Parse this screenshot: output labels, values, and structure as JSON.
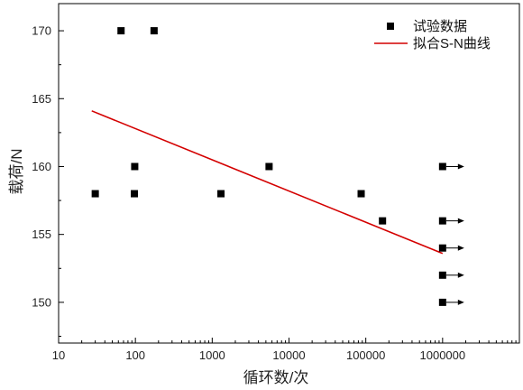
{
  "chart_data": {
    "type": "scatter",
    "title": "",
    "xlabel": "循环数/次",
    "ylabel": "载荷/N",
    "x_scale": "log",
    "xlim": [
      10,
      10000000
    ],
    "ylim": [
      147,
      172
    ],
    "x_ticks": [
      10,
      100,
      1000,
      10000,
      100000,
      1000000
    ],
    "x_tick_labels": [
      "10",
      "100",
      "1000",
      "10000",
      "100000",
      "1000000"
    ],
    "y_ticks": [
      150,
      155,
      160,
      165,
      170
    ],
    "y_tick_labels": [
      "150",
      "155",
      "160",
      "165",
      "170"
    ],
    "grid": false,
    "legend_position": "top-right",
    "series": [
      {
        "name": "试验数据",
        "marker": "square",
        "color": "#000000",
        "points": [
          {
            "x": 30,
            "y": 158
          },
          {
            "x": 65,
            "y": 170
          },
          {
            "x": 98,
            "y": 160
          },
          {
            "x": 97,
            "y": 158
          },
          {
            "x": 175,
            "y": 170
          },
          {
            "x": 1300,
            "y": 158
          },
          {
            "x": 5500,
            "y": 160
          },
          {
            "x": 87000,
            "y": 158
          },
          {
            "x": 165000,
            "y": 156
          },
          {
            "x": 1000000,
            "y": 160,
            "runout": true
          },
          {
            "x": 1000000,
            "y": 156,
            "runout": true
          },
          {
            "x": 1000000,
            "y": 154,
            "runout": true
          },
          {
            "x": 1000000,
            "y": 152,
            "runout": true
          },
          {
            "x": 1000000,
            "y": 150,
            "runout": true
          }
        ]
      },
      {
        "name": "拟合S-N曲线",
        "type": "line",
        "color": "#d40000",
        "points": [
          {
            "x": 27,
            "y": 164.1
          },
          {
            "x": 1000000,
            "y": 153.6
          }
        ]
      }
    ]
  }
}
